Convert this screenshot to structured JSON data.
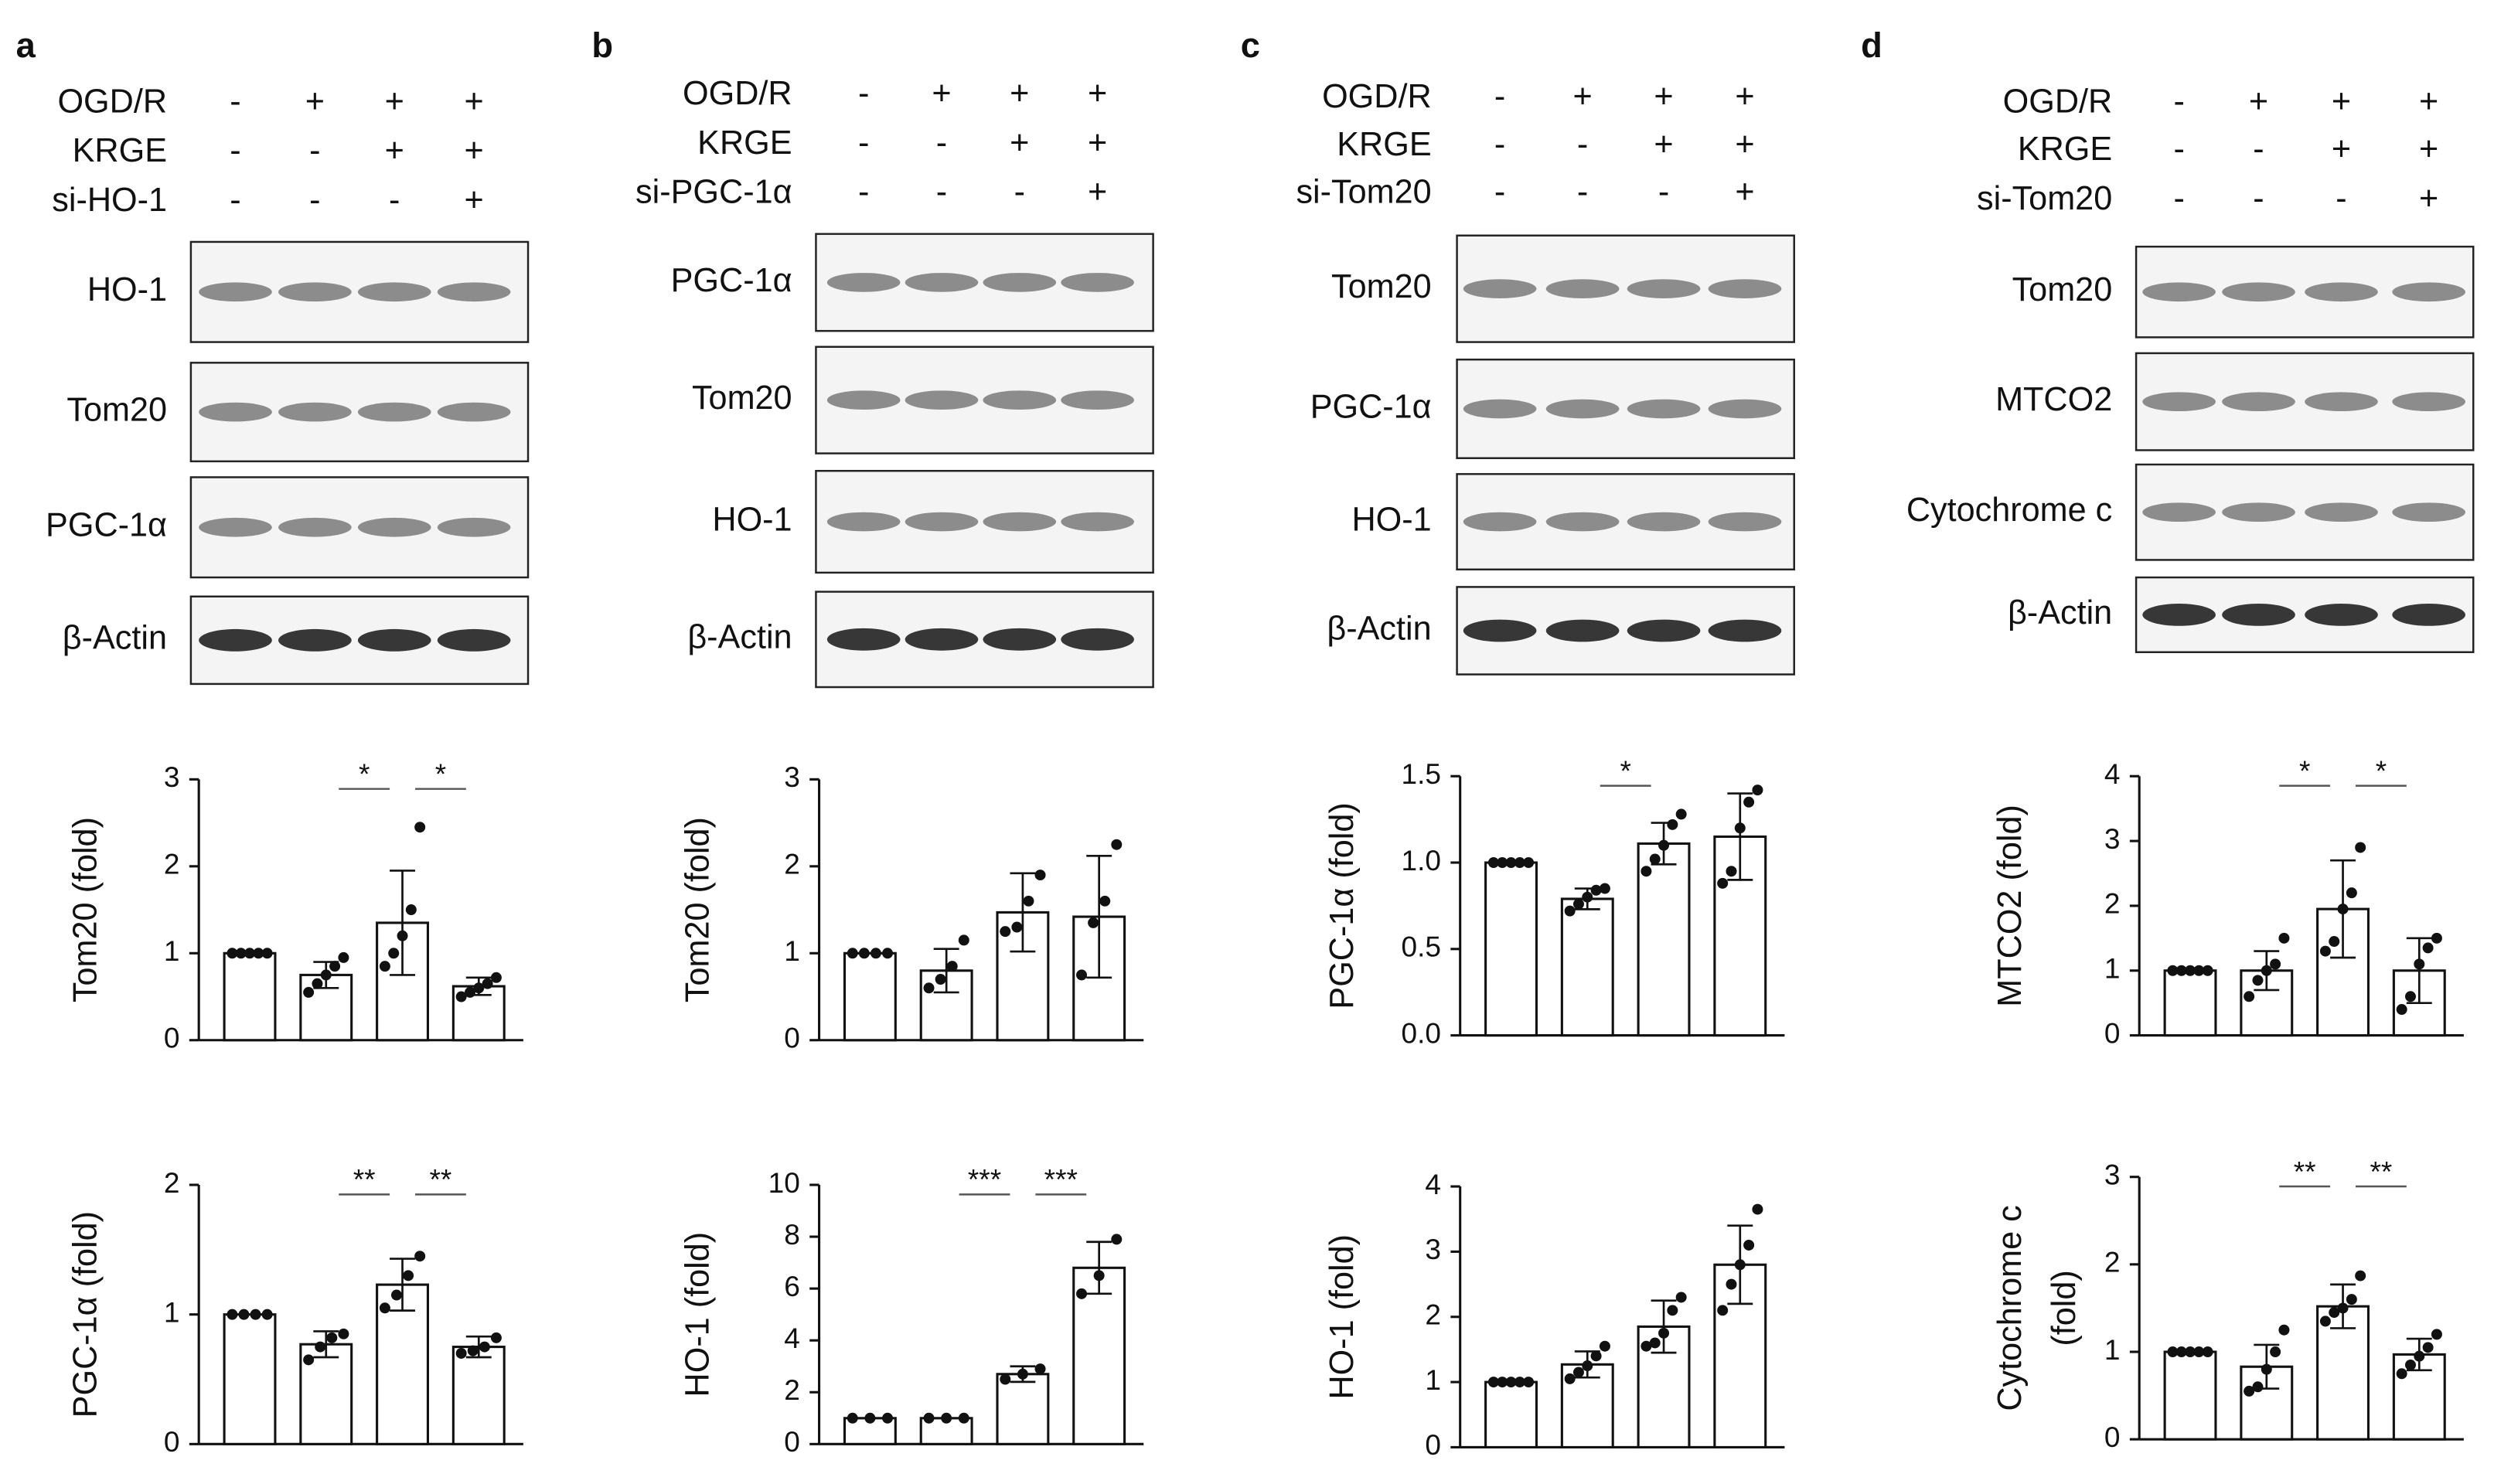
{
  "panels": [
    {
      "letter": "a",
      "conditions": [
        {
          "label": "OGD/R",
          "marks": [
            "-",
            "+",
            "+",
            "+"
          ]
        },
        {
          "label": "KRGE",
          "marks": [
            "-",
            "-",
            "+",
            "+"
          ]
        },
        {
          "label": "si-HO-1",
          "marks": [
            "-",
            "-",
            "-",
            "+"
          ]
        }
      ],
      "blots": [
        "HO-1",
        "Tom20",
        "PGC-1α",
        "β-Actin"
      ]
    },
    {
      "letter": "b",
      "conditions": [
        {
          "label": "OGD/R",
          "marks": [
            "-",
            "+",
            "+",
            "+"
          ]
        },
        {
          "label": "KRGE",
          "marks": [
            "-",
            "-",
            "+",
            "+"
          ]
        },
        {
          "label": "si-PGC-1α",
          "marks": [
            "-",
            "-",
            "-",
            "+"
          ]
        }
      ],
      "blots": [
        "PGC-1α",
        "Tom20",
        "HO-1",
        "β-Actin"
      ]
    },
    {
      "letter": "c",
      "conditions": [
        {
          "label": "OGD/R",
          "marks": [
            "-",
            "+",
            "+",
            "+"
          ]
        },
        {
          "label": "KRGE",
          "marks": [
            "-",
            "-",
            "+",
            "+"
          ]
        },
        {
          "label": "si-Tom20",
          "marks": [
            "-",
            "-",
            "-",
            "+"
          ]
        }
      ],
      "blots": [
        "Tom20",
        "PGC-1α",
        "HO-1",
        "β-Actin"
      ]
    },
    {
      "letter": "d",
      "conditions": [
        {
          "label": "OGD/R",
          "marks": [
            "-",
            "+",
            "+",
            "+"
          ]
        },
        {
          "label": "KRGE",
          "marks": [
            "-",
            "-",
            "+",
            "+"
          ]
        },
        {
          "label": "si-Tom20",
          "marks": [
            "-",
            "-",
            "-",
            "+"
          ]
        }
      ],
      "blots": [
        "Tom20",
        "MTCO2",
        "Cytochrome c",
        "β-Actin"
      ]
    }
  ],
  "chart_data": [
    {
      "type": "bar",
      "ylabel": [
        "Tom20 (fold)"
      ],
      "ylim": [
        0,
        3
      ],
      "yticks": [
        0,
        1,
        2,
        3
      ],
      "color": "#ffffff",
      "values": [
        1.0,
        0.75,
        1.35,
        0.62
      ],
      "errors": [
        0,
        0.15,
        0.6,
        0.1
      ],
      "points": [
        [
          1,
          1,
          1,
          1,
          1
        ],
        [
          0.55,
          0.65,
          0.75,
          0.85,
          0.95
        ],
        [
          0.85,
          1.0,
          1.2,
          1.5,
          2.45
        ],
        [
          0.5,
          0.55,
          0.6,
          0.65,
          0.72
        ]
      ],
      "significance": [
        {
          "label": "*",
          "between": [
            1,
            2
          ]
        },
        {
          "label": "*",
          "between": [
            2,
            3
          ]
        }
      ]
    },
    {
      "type": "bar",
      "ylabel": [
        "PGC-1α (fold)"
      ],
      "ylim": [
        0,
        2
      ],
      "yticks": [
        0,
        1,
        2
      ],
      "color": "#ffffff",
      "values": [
        1.0,
        0.77,
        1.23,
        0.75
      ],
      "errors": [
        0,
        0.1,
        0.2,
        0.08
      ],
      "points": [
        [
          1,
          1,
          1,
          1
        ],
        [
          0.65,
          0.75,
          0.82,
          0.85
        ],
        [
          1.05,
          1.15,
          1.3,
          1.45
        ],
        [
          0.7,
          0.72,
          0.75,
          0.82
        ]
      ],
      "significance": [
        {
          "label": "**",
          "between": [
            1,
            2
          ]
        },
        {
          "label": "**",
          "between": [
            2,
            3
          ]
        }
      ]
    },
    {
      "type": "bar",
      "ylabel": [
        "Tom20 (fold)"
      ],
      "ylim": [
        0,
        3
      ],
      "yticks": [
        0,
        1,
        2,
        3
      ],
      "color": "#ffffff",
      "values": [
        1.0,
        0.8,
        1.47,
        1.42
      ],
      "errors": [
        0,
        0.25,
        0.45,
        0.7
      ],
      "points": [
        [
          1,
          1,
          1,
          1
        ],
        [
          0.6,
          0.7,
          0.85,
          1.15
        ],
        [
          1.25,
          1.3,
          1.6,
          1.9
        ],
        [
          0.75,
          1.35,
          1.6,
          2.25
        ]
      ],
      "significance": []
    },
    {
      "type": "bar",
      "ylabel": [
        "HO-1 (fold)"
      ],
      "ylim": [
        0,
        10
      ],
      "yticks": [
        0,
        2,
        4,
        6,
        8,
        10
      ],
      "color": "#ffffff",
      "values": [
        1.0,
        1.0,
        2.7,
        6.8
      ],
      "errors": [
        0,
        0,
        0.3,
        1.0
      ],
      "points": [
        [
          1,
          1,
          1
        ],
        [
          1,
          1,
          1
        ],
        [
          2.5,
          2.7,
          2.9
        ],
        [
          5.8,
          6.5,
          7.9
        ]
      ],
      "significance": [
        {
          "label": "***",
          "between": [
            1,
            2
          ]
        },
        {
          "label": "***",
          "between": [
            2,
            3
          ]
        }
      ]
    },
    {
      "type": "bar",
      "ylabel": [
        "PGC-1α (fold)"
      ],
      "ylim": [
        0,
        1.5
      ],
      "yticks": [
        {
          "value": 0,
          "label": "0.0"
        },
        0.5,
        {
          "value": 1,
          "label": "1.0"
        },
        1.5
      ],
      "color": "#ffffff",
      "values": [
        1.0,
        0.79,
        1.11,
        1.15
      ],
      "errors": [
        0,
        0.06,
        0.12,
        0.25
      ],
      "points": [
        [
          1,
          1,
          1,
          1,
          1
        ],
        [
          0.72,
          0.76,
          0.8,
          0.84,
          0.85
        ],
        [
          0.95,
          1.02,
          1.1,
          1.22,
          1.28
        ],
        [
          0.88,
          0.95,
          1.2,
          1.35,
          1.42
        ]
      ],
      "significance": [
        {
          "label": "*",
          "between": [
            1,
            2
          ]
        }
      ]
    },
    {
      "type": "bar",
      "ylabel": [
        "HO-1 (fold)"
      ],
      "ylim": [
        0,
        4
      ],
      "yticks": [
        0,
        1,
        2,
        3,
        4
      ],
      "color": "#ffffff",
      "values": [
        1.0,
        1.27,
        1.85,
        2.8
      ],
      "errors": [
        0,
        0.2,
        0.4,
        0.6
      ],
      "points": [
        [
          1,
          1,
          1,
          1,
          1
        ],
        [
          1.05,
          1.15,
          1.25,
          1.4,
          1.55
        ],
        [
          1.55,
          1.6,
          1.75,
          2.1,
          2.3
        ],
        [
          2.1,
          2.5,
          2.8,
          3.1,
          3.65
        ]
      ],
      "significance": []
    },
    {
      "type": "bar",
      "ylabel": [
        "MTCO2 (fold)"
      ],
      "ylim": [
        0,
        4
      ],
      "yticks": [
        0,
        1,
        2,
        3,
        4
      ],
      "color": "#ffffff",
      "values": [
        1.0,
        1.0,
        1.95,
        1.0
      ],
      "errors": [
        0,
        0.3,
        0.75,
        0.5
      ],
      "points": [
        [
          1,
          1,
          1,
          1,
          1
        ],
        [
          0.6,
          0.85,
          1.0,
          1.1,
          1.5
        ],
        [
          1.3,
          1.45,
          1.95,
          2.2,
          2.9
        ],
        [
          0.4,
          0.6,
          1.1,
          1.35,
          1.5
        ]
      ],
      "significance": [
        {
          "label": "*",
          "between": [
            1,
            2
          ]
        },
        {
          "label": "*",
          "between": [
            2,
            3
          ]
        }
      ]
    },
    {
      "type": "bar",
      "ylabel": [
        "Cytochrome c",
        "(fold)"
      ],
      "ylim": [
        0,
        3
      ],
      "yticks": [
        0,
        1,
        2,
        3
      ],
      "color": "#ffffff",
      "values": [
        1.0,
        0.83,
        1.52,
        0.97
      ],
      "errors": [
        0,
        0.25,
        0.25,
        0.18
      ],
      "points": [
        [
          1,
          1,
          1,
          1,
          1
        ],
        [
          0.55,
          0.6,
          0.8,
          1.0,
          1.25
        ],
        [
          1.35,
          1.45,
          1.5,
          1.6,
          1.87
        ],
        [
          0.75,
          0.85,
          0.95,
          1.05,
          1.2
        ]
      ],
      "significance": [
        {
          "label": "**",
          "between": [
            1,
            2
          ]
        },
        {
          "label": "**",
          "between": [
            2,
            3
          ]
        }
      ]
    }
  ]
}
